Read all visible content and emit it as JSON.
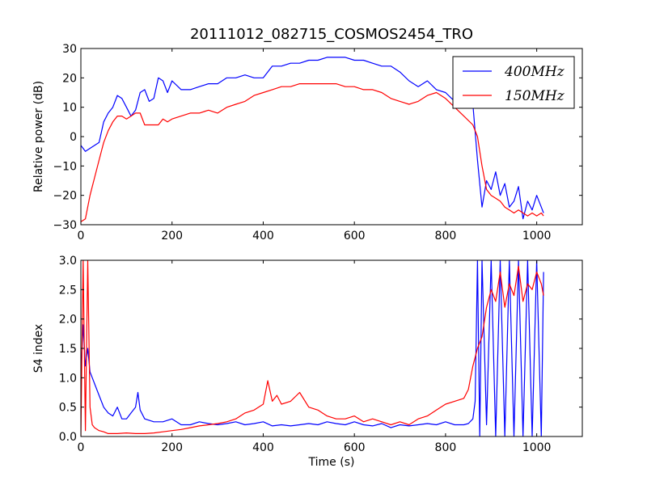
{
  "figure": {
    "title": "20111012_082715_COSMOS2454_TRO"
  },
  "chart_data": [
    {
      "type": "line",
      "name": "relative-power",
      "title": "",
      "xlabel": "",
      "ylabel": "Relative power (dB)",
      "xlim": [
        0,
        1100
      ],
      "ylim": [
        -30,
        30
      ],
      "xticks": [
        0,
        200,
        400,
        600,
        800,
        1000
      ],
      "yticks": [
        -30,
        -20,
        -10,
        0,
        10,
        20,
        30
      ],
      "legend": {
        "position": "top-right",
        "entries": [
          "400MHz",
          "150MHz"
        ]
      },
      "series": [
        {
          "name": "400MHz",
          "color": "#0000ff",
          "x": [
            0,
            10,
            20,
            30,
            40,
            50,
            60,
            70,
            80,
            90,
            100,
            110,
            120,
            130,
            140,
            150,
            160,
            170,
            180,
            190,
            200,
            220,
            240,
            260,
            280,
            300,
            320,
            340,
            360,
            380,
            400,
            420,
            440,
            460,
            480,
            500,
            520,
            540,
            560,
            580,
            600,
            620,
            640,
            660,
            680,
            700,
            720,
            740,
            760,
            780,
            800,
            820,
            840,
            860,
            870,
            880,
            890,
            900,
            910,
            920,
            930,
            940,
            950,
            960,
            970,
            980,
            990,
            1000,
            1010,
            1015
          ],
          "values": [
            -3,
            -5,
            -4,
            -3,
            -2,
            5,
            8,
            10,
            14,
            13,
            10,
            7,
            9,
            15,
            16,
            12,
            13,
            20,
            19,
            15,
            19,
            16,
            16,
            17,
            18,
            18,
            20,
            20,
            21,
            20,
            20,
            24,
            24,
            25,
            25,
            26,
            26,
            27,
            27,
            27,
            26,
            26,
            25,
            24,
            24,
            22,
            19,
            17,
            19,
            16,
            15,
            12,
            12,
            11,
            -8,
            -24,
            -15,
            -18,
            -12,
            -20,
            -16,
            -24,
            -22,
            -17,
            -28,
            -22,
            -25,
            -20,
            -24,
            -26
          ]
        },
        {
          "name": "150MHz",
          "color": "#ff0000",
          "x": [
            0,
            10,
            20,
            30,
            40,
            50,
            60,
            70,
            80,
            90,
            100,
            110,
            120,
            130,
            140,
            150,
            160,
            170,
            180,
            190,
            200,
            220,
            240,
            260,
            280,
            300,
            320,
            340,
            360,
            380,
            400,
            420,
            440,
            460,
            480,
            500,
            520,
            540,
            560,
            580,
            600,
            620,
            640,
            660,
            680,
            700,
            720,
            740,
            760,
            780,
            800,
            820,
            840,
            860,
            870,
            880,
            890,
            900,
            910,
            920,
            930,
            940,
            950,
            960,
            970,
            980,
            990,
            1000,
            1010,
            1015
          ],
          "values": [
            -29,
            -28,
            -20,
            -14,
            -8,
            -2,
            2,
            5,
            7,
            7,
            6,
            7,
            8,
            8,
            4,
            4,
            4,
            4,
            6,
            5,
            6,
            7,
            8,
            8,
            9,
            8,
            10,
            11,
            12,
            14,
            15,
            16,
            17,
            17,
            18,
            18,
            18,
            18,
            18,
            17,
            17,
            16,
            16,
            15,
            13,
            12,
            11,
            12,
            14,
            15,
            13,
            10,
            7,
            4,
            0,
            -10,
            -18,
            -20,
            -21,
            -22,
            -24,
            -25,
            -26,
            -25,
            -26,
            -27,
            -26,
            -27,
            -26,
            -27
          ]
        }
      ]
    },
    {
      "type": "line",
      "name": "s4-index",
      "title": "",
      "xlabel": "Time (s)",
      "ylabel": "S4 index",
      "xlim": [
        0,
        1100
      ],
      "ylim": [
        0,
        3
      ],
      "xticks": [
        0,
        200,
        400,
        600,
        800,
        1000
      ],
      "yticks": [
        0.0,
        0.5,
        1.0,
        1.5,
        2.0,
        2.5,
        3.0
      ],
      "yticklabels": [
        "0.0",
        "0.5",
        "1.0",
        "1.5",
        "2.0",
        "2.5",
        "3.0"
      ],
      "series": [
        {
          "name": "400MHz",
          "color": "#0000ff",
          "x": [
            0,
            5,
            10,
            15,
            20,
            25,
            30,
            40,
            50,
            60,
            70,
            80,
            90,
            100,
            110,
            120,
            125,
            130,
            140,
            160,
            180,
            200,
            220,
            240,
            260,
            280,
            300,
            320,
            340,
            360,
            380,
            400,
            420,
            440,
            460,
            480,
            500,
            520,
            540,
            560,
            580,
            600,
            620,
            640,
            660,
            680,
            700,
            720,
            740,
            760,
            780,
            800,
            820,
            840,
            850,
            860,
            865,
            870,
            875,
            880,
            890,
            900,
            910,
            920,
            930,
            940,
            950,
            960,
            970,
            980,
            990,
            1000,
            1010,
            1015
          ],
          "values": [
            1.0,
            1.9,
            1.2,
            1.5,
            1.1,
            1.0,
            0.9,
            0.7,
            0.5,
            0.4,
            0.35,
            0.5,
            0.3,
            0.3,
            0.4,
            0.5,
            0.75,
            0.45,
            0.3,
            0.25,
            0.25,
            0.3,
            0.2,
            0.2,
            0.25,
            0.22,
            0.2,
            0.22,
            0.25,
            0.2,
            0.22,
            0.25,
            0.18,
            0.2,
            0.18,
            0.2,
            0.22,
            0.2,
            0.25,
            0.22,
            0.2,
            0.25,
            0.2,
            0.18,
            0.22,
            0.15,
            0.2,
            0.18,
            0.2,
            0.22,
            0.2,
            0.25,
            0.2,
            0.2,
            0.22,
            0.3,
            0.6,
            3.0,
            0.0,
            3.0,
            0.2,
            3.0,
            0.0,
            3.0,
            0.0,
            3.0,
            0.0,
            3.0,
            0.0,
            3.0,
            0.0,
            3.0,
            0.0,
            2.8
          ]
        },
        {
          "name": "150MHz",
          "color": "#ff0000",
          "x": [
            0,
            5,
            10,
            15,
            20,
            25,
            30,
            40,
            50,
            60,
            70,
            80,
            100,
            120,
            140,
            160,
            180,
            200,
            220,
            240,
            260,
            280,
            300,
            320,
            340,
            360,
            380,
            400,
            410,
            420,
            430,
            440,
            460,
            480,
            500,
            520,
            540,
            560,
            580,
            600,
            620,
            640,
            660,
            680,
            700,
            720,
            740,
            760,
            780,
            800,
            820,
            840,
            850,
            860,
            870,
            880,
            890,
            900,
            910,
            920,
            930,
            940,
            950,
            960,
            970,
            980,
            990,
            1000,
            1010,
            1015
          ],
          "values": [
            0.0,
            3.0,
            0.1,
            3.0,
            0.5,
            0.2,
            0.15,
            0.1,
            0.08,
            0.05,
            0.05,
            0.05,
            0.06,
            0.05,
            0.05,
            0.06,
            0.08,
            0.1,
            0.12,
            0.15,
            0.18,
            0.2,
            0.22,
            0.25,
            0.3,
            0.4,
            0.45,
            0.55,
            0.95,
            0.6,
            0.7,
            0.55,
            0.6,
            0.75,
            0.5,
            0.45,
            0.35,
            0.3,
            0.3,
            0.35,
            0.25,
            0.3,
            0.25,
            0.2,
            0.25,
            0.2,
            0.3,
            0.35,
            0.45,
            0.55,
            0.6,
            0.65,
            0.8,
            1.2,
            1.5,
            1.7,
            2.2,
            2.5,
            2.3,
            2.8,
            2.2,
            2.6,
            2.4,
            2.9,
            2.3,
            2.6,
            2.5,
            2.8,
            2.6,
            2.4
          ]
        }
      ]
    }
  ]
}
